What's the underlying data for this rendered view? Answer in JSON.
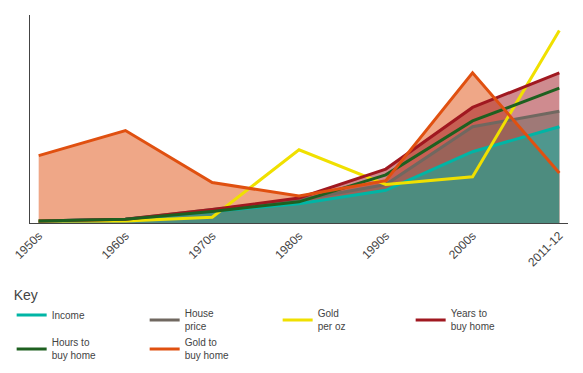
{
  "chart_data": {
    "type": "line",
    "categories": [
      "1950s",
      "1960s",
      "1970s",
      "1980s",
      "1990s",
      "2000s",
      "2011-12"
    ],
    "series": [
      {
        "name": "Income",
        "color": "#00b5a5",
        "type": "area",
        "values": [
          0.01,
          0.02,
          0.06,
          0.1,
          0.17,
          0.37,
          0.5
        ]
      },
      {
        "name": "House\nprice",
        "color": "#706860",
        "type": "area",
        "values": [
          0.01,
          0.02,
          0.07,
          0.12,
          0.2,
          0.5,
          0.58
        ]
      },
      {
        "name": "Gold\nper oz",
        "color": "#f0e000",
        "type": "line",
        "values": [
          0.01,
          0.01,
          0.03,
          0.38,
          0.2,
          0.24,
          1.0
        ]
      },
      {
        "name": "Years to\nbuy home",
        "color": "#a01820",
        "type": "area",
        "values": [
          0.01,
          0.02,
          0.07,
          0.13,
          0.28,
          0.6,
          0.78
        ]
      },
      {
        "name": "Hours to\nbuy home",
        "color": "#1e6020",
        "type": "line",
        "values": [
          0.01,
          0.02,
          0.06,
          0.11,
          0.25,
          0.53,
          0.7
        ]
      },
      {
        "name": "Gold to\nbuy home",
        "color": "#e05010",
        "type": "area",
        "values": [
          0.35,
          0.48,
          0.21,
          0.14,
          0.22,
          0.78,
          0.26
        ]
      }
    ],
    "legend_title": "Key",
    "legend": "bottom",
    "ylim": [
      0,
      1.08
    ],
    "yticks": [],
    "grid": false,
    "tick_labels": "x"
  }
}
